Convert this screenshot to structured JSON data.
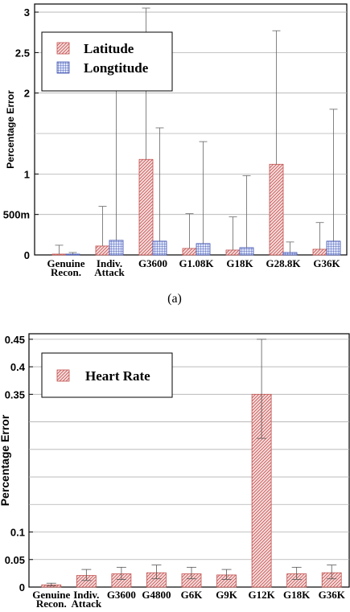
{
  "chart_data": [
    {
      "type": "bar",
      "ylabel": "Percentage Error",
      "caption": "(a)",
      "ylim": [
        0,
        3.1
      ],
      "yticks": [
        {
          "value": 0,
          "label": "0"
        },
        {
          "value": 0.5,
          "label": "500m"
        },
        {
          "value": 1,
          "label": "1"
        },
        {
          "value": 2,
          "label": "2"
        },
        {
          "value": 2.5,
          "label": "2.5"
        },
        {
          "value": 3,
          "label": "3"
        }
      ],
      "categories": [
        [
          "Genuine",
          "Recon."
        ],
        [
          "Indiv.",
          "Attack"
        ],
        [
          "G3600"
        ],
        [
          "G1.08K"
        ],
        [
          "G18K"
        ],
        [
          "G28.8K"
        ],
        [
          "G36K"
        ]
      ],
      "series": [
        {
          "name": "Latitude",
          "pattern": "hatch",
          "color": "#c0504d",
          "fill": "#f6d4d4",
          "values": [
            0.01,
            0.11,
            1.18,
            0.08,
            0.06,
            1.12,
            0.07
          ],
          "err_high": [
            0.12,
            0.6,
            3.05,
            0.51,
            0.47,
            2.77,
            0.4
          ]
        },
        {
          "name": "Longtitude",
          "pattern": "grid",
          "color": "#3c4fb0",
          "fill": "#ccd6f4",
          "values": [
            0.01,
            0.18,
            0.17,
            0.14,
            0.09,
            0.03,
            0.17
          ],
          "err_high": [
            0.03,
            2.03,
            1.57,
            1.4,
            0.98,
            0.16,
            1.8
          ]
        }
      ],
      "legend": "top-left",
      "grid": true
    },
    {
      "type": "bar",
      "ylabel": "Percentage Error",
      "ylim": [
        0,
        0.46
      ],
      "yticks": [
        {
          "value": 0,
          "label": "0"
        },
        {
          "value": 0.05,
          "label": "0.05"
        },
        {
          "value": 0.1,
          "label": "0.1"
        },
        {
          "value": 0.35,
          "label": "0.35"
        },
        {
          "value": 0.4,
          "label": "0.4"
        },
        {
          "value": 0.45,
          "label": "0.45"
        }
      ],
      "gridlines": [
        0.05,
        0.1,
        0.15,
        0.2,
        0.25,
        0.3,
        0.35,
        0.4,
        0.45
      ],
      "categories": [
        [
          "Genuine",
          "Recon."
        ],
        [
          "Indiv.",
          "Attack"
        ],
        [
          "G3600"
        ],
        [
          "G4800"
        ],
        [
          "G6K"
        ],
        [
          "G9K"
        ],
        [
          "G12K"
        ],
        [
          "G18K"
        ],
        [
          "G36K"
        ]
      ],
      "series": [
        {
          "name": "Heart Rate",
          "pattern": "hatch",
          "color": "#c0504d",
          "fill": "#f6d4d4",
          "values": [
            0.004,
            0.021,
            0.024,
            0.026,
            0.024,
            0.022,
            0.35,
            0.024,
            0.026
          ],
          "err_low": [
            0.002,
            0.012,
            0.014,
            0.015,
            0.015,
            0.014,
            0.27,
            0.014,
            0.015
          ],
          "err_high": [
            0.007,
            0.032,
            0.036,
            0.04,
            0.036,
            0.032,
            0.45,
            0.036,
            0.04
          ]
        }
      ],
      "legend": "top-left",
      "grid": true
    }
  ]
}
